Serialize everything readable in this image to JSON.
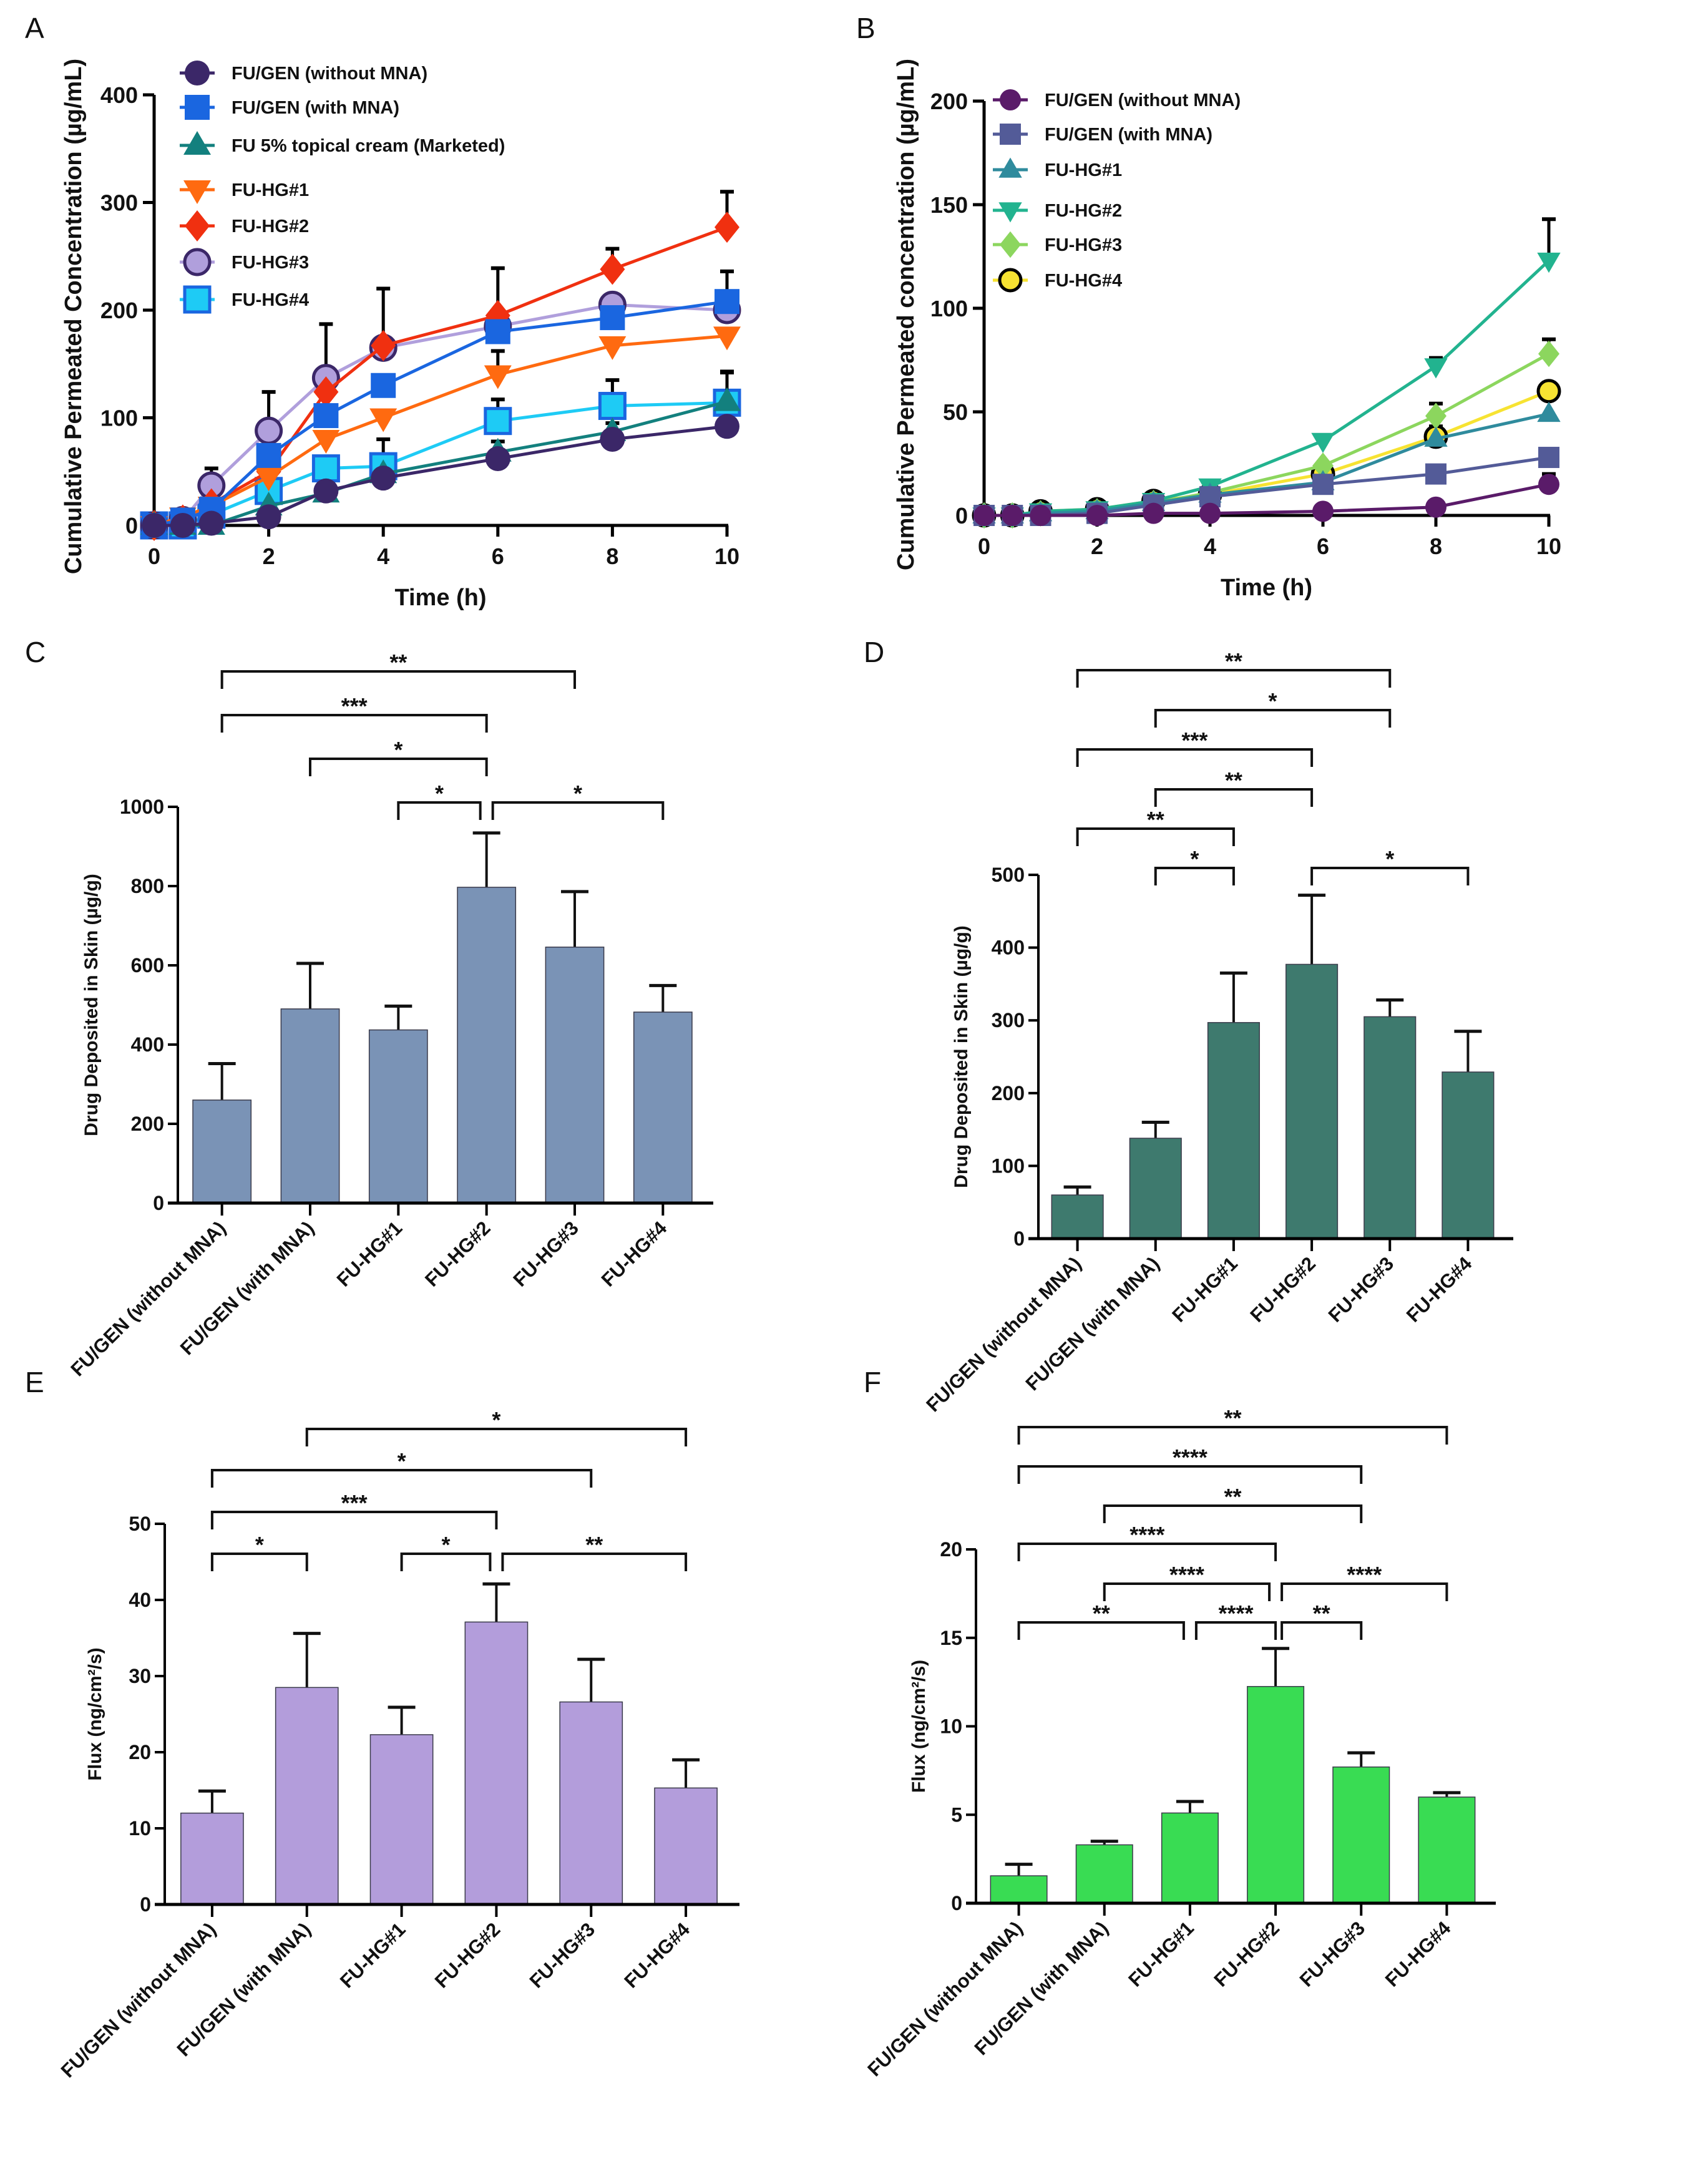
{
  "panels": {
    "A": {
      "letter": "A"
    },
    "B": {
      "letter": "B"
    },
    "C": {
      "letter": "C"
    },
    "D": {
      "letter": "D"
    },
    "E": {
      "letter": "E"
    },
    "F": {
      "letter": "F"
    }
  },
  "chart_data": [
    {
      "id": "A",
      "type": "line",
      "title": "",
      "xlabel": "Time (h)",
      "ylabel": "Cumulative Permeated Concentration (µg/mL)",
      "xlim": [
        0,
        10
      ],
      "ylim": [
        0,
        400
      ],
      "xticks": [
        0,
        2,
        4,
        6,
        8,
        10
      ],
      "yticks": [
        0,
        100,
        200,
        300,
        400
      ],
      "grid": false,
      "legend_position": "top-left",
      "x": [
        0,
        0.5,
        1,
        2,
        3,
        4,
        6,
        8,
        10
      ],
      "series": [
        {
          "name": "FU/GEN (without MNA)",
          "marker": "circle",
          "color": "#3b2768",
          "values": [
            0,
            0,
            2,
            8,
            32,
            44,
            62,
            80,
            92
          ],
          "err": [
            0,
            0,
            0,
            0,
            0,
            0,
            0,
            0,
            0
          ]
        },
        {
          "name": "FU/GEN (with MNA)",
          "marker": "square",
          "color": "#1a66e0",
          "values": [
            0,
            5,
            15,
            65,
            102,
            130,
            180,
            193,
            208
          ],
          "err": [
            0,
            0,
            0,
            0,
            0,
            0,
            0,
            0,
            28
          ]
        },
        {
          "name": "FU 5% topical cream (Marketed)",
          "marker": "triangle-up",
          "color": "#13807e",
          "values": [
            0,
            0,
            0,
            18,
            30,
            48,
            68,
            87,
            115
          ],
          "err": [
            0,
            0,
            0,
            0,
            0,
            0,
            10,
            8,
            28
          ]
        },
        {
          "name": "FU-HG#1",
          "marker": "triangle-down",
          "color": "#ff6a10",
          "values": [
            0,
            8,
            18,
            45,
            80,
            100,
            140,
            167,
            176
          ],
          "err": [
            0,
            0,
            0,
            0,
            0,
            0,
            22,
            0,
            0
          ]
        },
        {
          "name": "FU-HG#2",
          "marker": "diamond",
          "color": "#f03010",
          "values": [
            0,
            5,
            20,
            50,
            124,
            167,
            195,
            238,
            277
          ],
          "err": [
            0,
            0,
            0,
            0,
            0,
            0,
            0,
            19,
            33
          ]
        },
        {
          "name": "FU-HG#3",
          "marker": "circle",
          "color": "#b09fdc",
          "edge": "#3b2768",
          "values": [
            0,
            5,
            37,
            88,
            137,
            165,
            185,
            205,
            200
          ],
          "err": [
            0,
            0,
            16,
            36,
            50,
            55,
            54,
            0,
            0
          ]
        },
        {
          "name": "FU-HG#4",
          "marker": "square",
          "color": "#1ecbf5",
          "edge": "#1a66e0",
          "values": [
            0,
            0,
            10,
            32,
            53,
            55,
            97,
            111,
            114
          ],
          "err": [
            0,
            0,
            0,
            0,
            0,
            25,
            20,
            24,
            28
          ]
        }
      ]
    },
    {
      "id": "B",
      "type": "line",
      "title": "",
      "xlabel": "Time (h)",
      "ylabel": "Cumulative Permeated concentration (µg/mL)",
      "xlim": [
        0,
        10
      ],
      "ylim": [
        0,
        200
      ],
      "xticks": [
        0,
        2,
        4,
        6,
        8,
        10
      ],
      "yticks": [
        0,
        50,
        100,
        150,
        200
      ],
      "grid": false,
      "legend_position": "top-left",
      "x": [
        0,
        0.5,
        1,
        2,
        3,
        4,
        6,
        8,
        10
      ],
      "series": [
        {
          "name": "FU/GEN (without MNA)",
          "marker": "circle",
          "color": "#5a1b69",
          "values": [
            0,
            0,
            0,
            0,
            1,
            1,
            2,
            4,
            15
          ],
          "err": [
            0,
            0,
            0,
            0,
            0,
            0,
            0,
            0,
            5
          ]
        },
        {
          "name": "FU/GEN (with MNA)",
          "marker": "square",
          "color": "#535b98",
          "values": [
            0,
            0,
            0,
            1,
            5,
            9,
            15,
            20,
            28
          ],
          "err": [
            0,
            0,
            0,
            0,
            0,
            0,
            0,
            0,
            0
          ]
        },
        {
          "name": "FU-HG#1",
          "marker": "triangle-up",
          "color": "#2f8b9d",
          "values": [
            0,
            0,
            1,
            2,
            6,
            10,
            16,
            37,
            49
          ],
          "err": [
            0,
            0,
            0,
            0,
            0,
            0,
            0,
            0,
            0
          ]
        },
        {
          "name": "FU-HG#2",
          "marker": "triangle-down",
          "color": "#22b38f",
          "values": [
            0,
            0,
            2,
            3,
            7,
            14,
            36,
            72,
            123
          ],
          "err": [
            0,
            0,
            0,
            0,
            0,
            0,
            0,
            4,
            20
          ]
        },
        {
          "name": "FU-HG#3",
          "marker": "diamond",
          "color": "#8cd65e",
          "values": [
            0,
            0,
            1,
            2,
            6,
            11,
            24,
            48,
            78
          ],
          "err": [
            0,
            0,
            0,
            0,
            0,
            0,
            0,
            6,
            7
          ]
        },
        {
          "name": "FU-HG#4",
          "marker": "circle",
          "color": "#f7e332",
          "edge": "#000000",
          "values": [
            0,
            0,
            2,
            3,
            7,
            10,
            20,
            38,
            60
          ],
          "err": [
            0,
            0,
            0,
            0,
            0,
            0,
            0,
            5,
            0
          ]
        }
      ]
    },
    {
      "id": "C",
      "type": "bar",
      "title": "",
      "xlabel": "",
      "ylabel": "Drug Deposited in Skin (µg/g)",
      "ylim": [
        0,
        1000
      ],
      "yticks": [
        0,
        200,
        400,
        600,
        800,
        1000
      ],
      "grid": false,
      "bar_color": "#7a93b6",
      "categories": [
        "FU/GEN (without MNA)",
        "FU/GEN (with MNA)",
        "FU-HG#1",
        "FU-HG#2",
        "FU-HG#3",
        "FU-HG#4"
      ],
      "values": [
        260,
        490,
        437,
        797,
        646,
        482
      ],
      "err": [
        92,
        115,
        60,
        137,
        140,
        67
      ],
      "significance": [
        {
          "from": 0,
          "to": 4,
          "label": "**"
        },
        {
          "from": 0,
          "to": 3,
          "label": "***"
        },
        {
          "from": 1,
          "to": 3,
          "label": "*"
        },
        {
          "from": 2,
          "to": 3,
          "label": "*"
        },
        {
          "from": 3,
          "to": 5,
          "label": "*"
        }
      ]
    },
    {
      "id": "D",
      "type": "bar",
      "title": "",
      "xlabel": "",
      "ylabel": "Drug Deposited in Skin (µg/g)",
      "ylim": [
        0,
        500
      ],
      "yticks": [
        0,
        100,
        200,
        300,
        400,
        500
      ],
      "grid": false,
      "bar_color": "#3e7a6e",
      "categories": [
        "FU/GEN (without MNA)",
        "FU/GEN (with MNA)",
        "FU-HG#1",
        "FU-HG#2",
        "FU-HG#3",
        "FU-HG#4"
      ],
      "values": [
        60,
        138,
        297,
        377,
        305,
        229
      ],
      "err": [
        11,
        22,
        68,
        95,
        23,
        56
      ],
      "significance": [
        {
          "from": 0,
          "to": 4,
          "label": "**"
        },
        {
          "from": 1,
          "to": 4,
          "label": "*"
        },
        {
          "from": 0,
          "to": 3,
          "label": "***"
        },
        {
          "from": 1,
          "to": 3,
          "label": "**"
        },
        {
          "from": 0,
          "to": 2,
          "label": "**"
        },
        {
          "from": 1,
          "to": 2,
          "label": "*"
        },
        {
          "from": 3,
          "to": 5,
          "label": "*"
        }
      ]
    },
    {
      "id": "E",
      "type": "bar",
      "title": "",
      "xlabel": "",
      "ylabel": "Flux (ng/cm²/s)",
      "ylim": [
        0,
        50
      ],
      "yticks": [
        0,
        10,
        20,
        30,
        40,
        50
      ],
      "grid": false,
      "bar_color": "#b39ddb",
      "categories": [
        "FU/GEN (without MNA)",
        "FU/GEN (with MNA)",
        "FU-HG#1",
        "FU-HG#2",
        "FU-HG#3",
        "FU-HG#4"
      ],
      "values": [
        12.0,
        28.5,
        22.3,
        37.1,
        26.6,
        15.3
      ],
      "err": [
        2.9,
        7.1,
        3.6,
        5.0,
        5.6,
        3.7
      ],
      "significance": [
        {
          "from": 1,
          "to": 5,
          "label": "*"
        },
        {
          "from": 0,
          "to": 4,
          "label": "*"
        },
        {
          "from": 0,
          "to": 3,
          "label": "***"
        },
        {
          "from": 0,
          "to": 1,
          "label": "*"
        },
        {
          "from": 2,
          "to": 3,
          "label": "*"
        },
        {
          "from": 3,
          "to": 5,
          "label": "**"
        }
      ]
    },
    {
      "id": "F",
      "type": "bar",
      "title": "",
      "xlabel": "",
      "ylabel": "Flux (ng/cm²/s)",
      "ylim": [
        0,
        20
      ],
      "yticks": [
        0,
        5,
        10,
        15,
        20
      ],
      "grid": false,
      "bar_color": "#39dc53",
      "categories": [
        "FU/GEN (without MNA)",
        "FU/GEN (with MNA)",
        "FU-HG#1",
        "FU-HG#2",
        "FU-HG#3",
        "FU-HG#4"
      ],
      "values": [
        1.55,
        3.3,
        5.1,
        12.25,
        7.7,
        6.0
      ],
      "err": [
        0.65,
        0.2,
        0.65,
        2.15,
        0.8,
        0.25
      ],
      "significance": [
        {
          "from": 0,
          "to": 5,
          "label": "**"
        },
        {
          "from": 0,
          "to": 4,
          "label": "****"
        },
        {
          "from": 1,
          "to": 4,
          "label": "**"
        },
        {
          "from": 0,
          "to": 3,
          "label": "****"
        },
        {
          "from": 1,
          "to": 3,
          "label": "****"
        },
        {
          "from": 3,
          "to": 5,
          "label": "****"
        },
        {
          "from": 0,
          "to": 2,
          "label": "**"
        },
        {
          "from": 2,
          "to": 3,
          "label": "****"
        },
        {
          "from": 3,
          "to": 4,
          "label": "**"
        }
      ]
    }
  ]
}
